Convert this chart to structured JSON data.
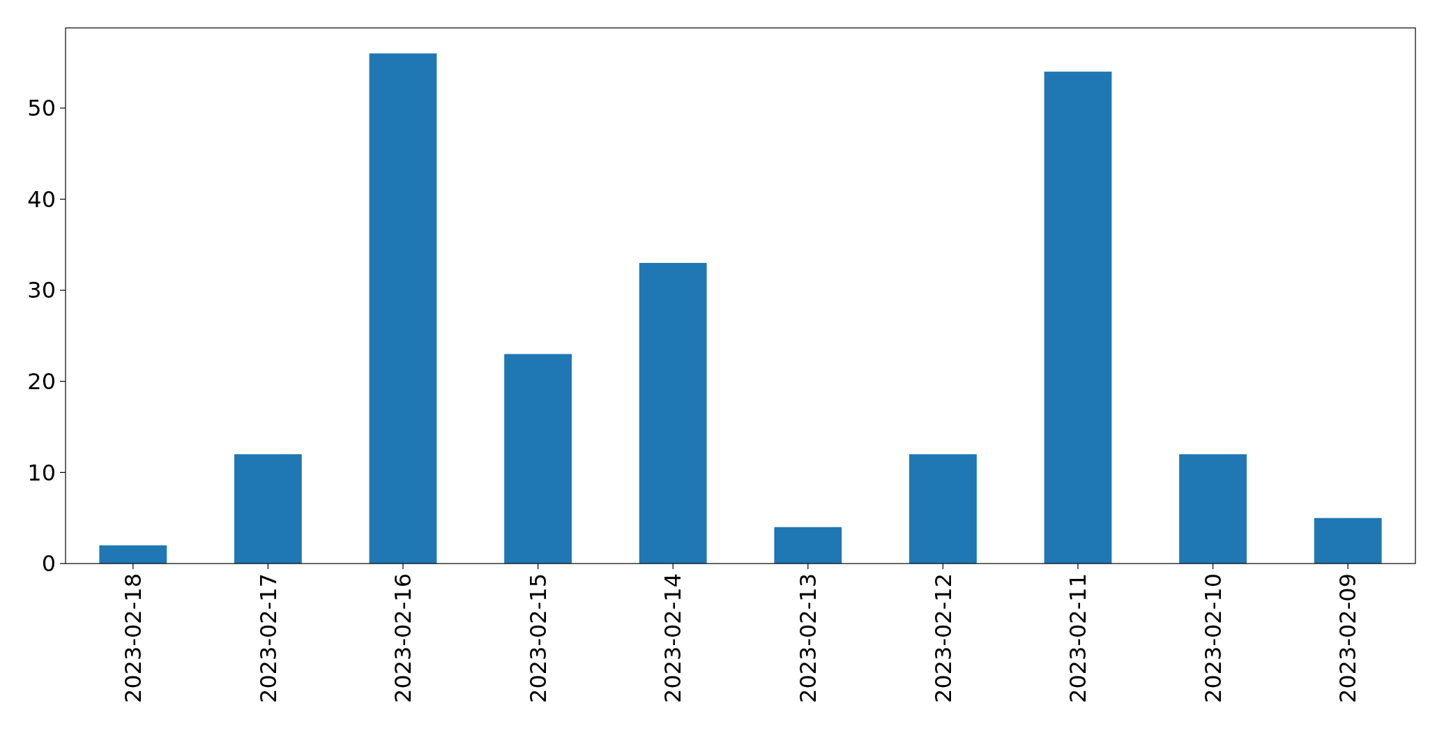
{
  "chart_data": {
    "type": "bar",
    "categories": [
      "2023-02-18",
      "2023-02-17",
      "2023-02-16",
      "2023-02-15",
      "2023-02-14",
      "2023-02-13",
      "2023-02-12",
      "2023-02-11",
      "2023-02-10",
      "2023-02-09"
    ],
    "values": [
      2,
      12,
      56,
      23,
      33,
      4,
      12,
      54,
      12,
      5
    ],
    "color": "#1f77b4",
    "ylim": [
      0,
      58.8
    ],
    "yticks": [
      0,
      10,
      20,
      30,
      40,
      50
    ],
    "grid": false
  }
}
